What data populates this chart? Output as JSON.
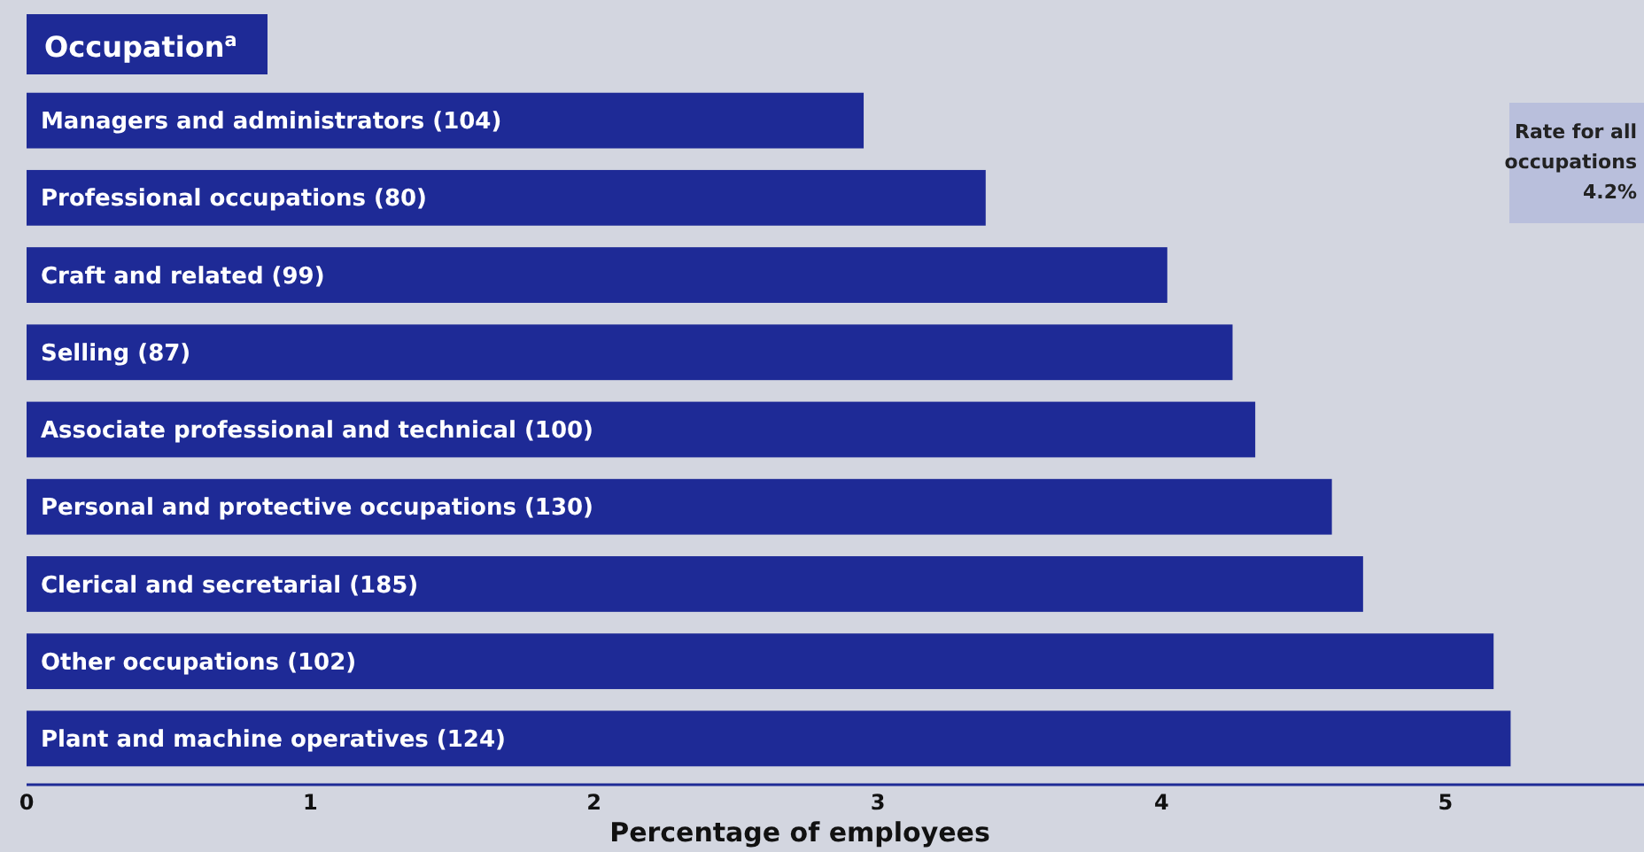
{
  "chart_data": {
    "type": "bar",
    "orientation": "horizontal",
    "title": "Occupation$^{a}$",
    "xlabel": "Percentage of employees",
    "categories": [
      "Managers and administrators (104)",
      "Professional occupations (80)",
      "Craft and related (99)",
      "Selling (87)",
      "Associate professional and technical (100)",
      "Personal and protective occupations (130)",
      "Clerical and secretarial (185)",
      "Other occupations (102)",
      "Plant and machine operatives (124)"
    ],
    "values": [
      2.95,
      3.38,
      4.02,
      4.25,
      4.33,
      4.6,
      4.71,
      5.17,
      5.23
    ],
    "color": "#1e2a96",
    "xlim": [
      0,
      5.7
    ],
    "xticks": [
      0,
      1,
      2,
      3,
      4,
      5
    ],
    "annotations": [
      "Rate for all occupations 4.2%"
    ]
  }
}
